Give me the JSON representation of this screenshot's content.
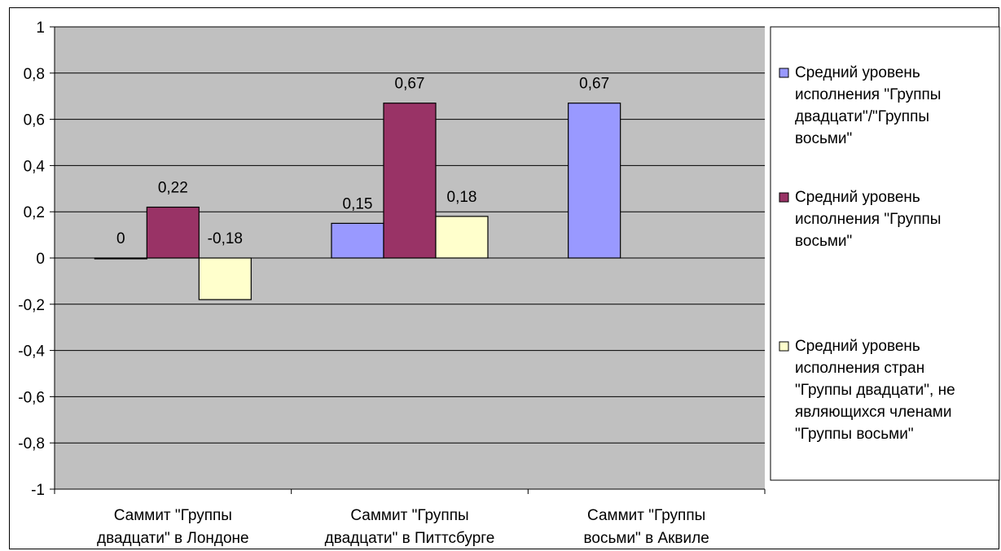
{
  "chart_data": {
    "type": "bar",
    "title": "",
    "xlabel": "",
    "ylabel": "",
    "ylim": [
      -1,
      1
    ],
    "yticks": [
      "-1",
      "-0,8",
      "-0,6",
      "-0,4",
      "-0,2",
      "0",
      "0,2",
      "0,4",
      "0,6",
      "0,8",
      "1"
    ],
    "ytick_values": [
      -1,
      -0.8,
      -0.6,
      -0.4,
      -0.2,
      0,
      0.2,
      0.4,
      0.6,
      0.8,
      1
    ],
    "categories": [
      [
        "Саммит \"Группы",
        "двадцати\" в Лондоне"
      ],
      [
        "Саммит \"Группы",
        "двадцати\" в Питтсбурге"
      ],
      [
        "Саммит \"Группы",
        "восьми\" в Аквиле"
      ]
    ],
    "series": [
      {
        "name": [
          "Средний уровень",
          "исполнения \"Группы",
          "двадцати\"/\"Группы",
          "восьми\""
        ],
        "color": "#9999ff",
        "values": [
          0,
          0.15,
          0.67
        ],
        "labels": [
          "0",
          "0,15",
          "0,67"
        ]
      },
      {
        "name": [
          "Средний уровень",
          "исполнения \"Группы",
          "восьми\""
        ],
        "color": "#993366",
        "values": [
          0.22,
          0.67,
          null
        ],
        "labels": [
          "0,22",
          "0,67",
          ""
        ]
      },
      {
        "name": [
          "Средний уровень",
          "исполнения стран",
          "\"Группы двадцати\", не",
          "являющихся членами",
          "\"Группы восьми\""
        ],
        "color": "#ffffcc",
        "values": [
          -0.18,
          0.18,
          null
        ],
        "labels": [
          "-0,18",
          "0,18",
          ""
        ]
      }
    ],
    "plot_background": "#c0c0c0",
    "grid": true,
    "legend_position": "right"
  }
}
